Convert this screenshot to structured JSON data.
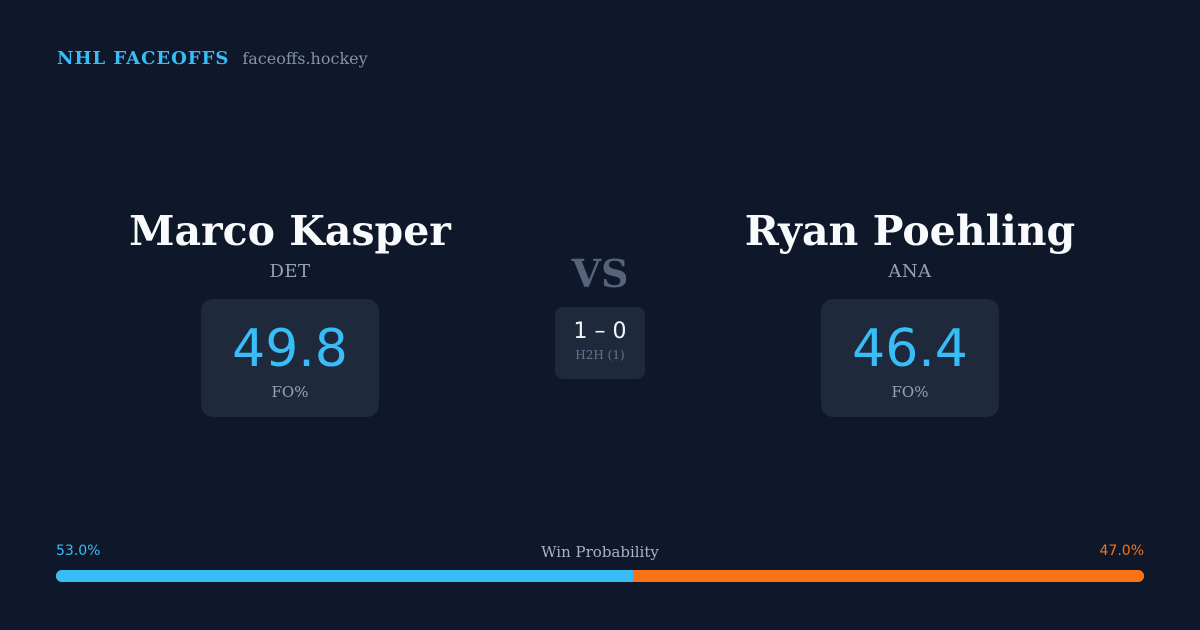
{
  "brand": {
    "title": "NHL FACEOFFS",
    "site": "faceoffs.hockey"
  },
  "matchup": {
    "vs_label": "VS",
    "left": {
      "name": "Marco Kasper",
      "team": "DET",
      "fo_pct": "49.8",
      "fo_label": "FO%"
    },
    "right": {
      "name": "Ryan Poehling",
      "team": "ANA",
      "fo_pct": "46.4",
      "fo_label": "FO%"
    },
    "h2h": {
      "score": "1 – 0",
      "label": "H2H (1)"
    }
  },
  "win_probability": {
    "title": "Win Probability",
    "left_label": "53.0%",
    "right_label": "47.0%",
    "left_value": 53.0,
    "right_value": 47.0,
    "left_color": "#38bdf8",
    "right_color": "#f97316"
  }
}
